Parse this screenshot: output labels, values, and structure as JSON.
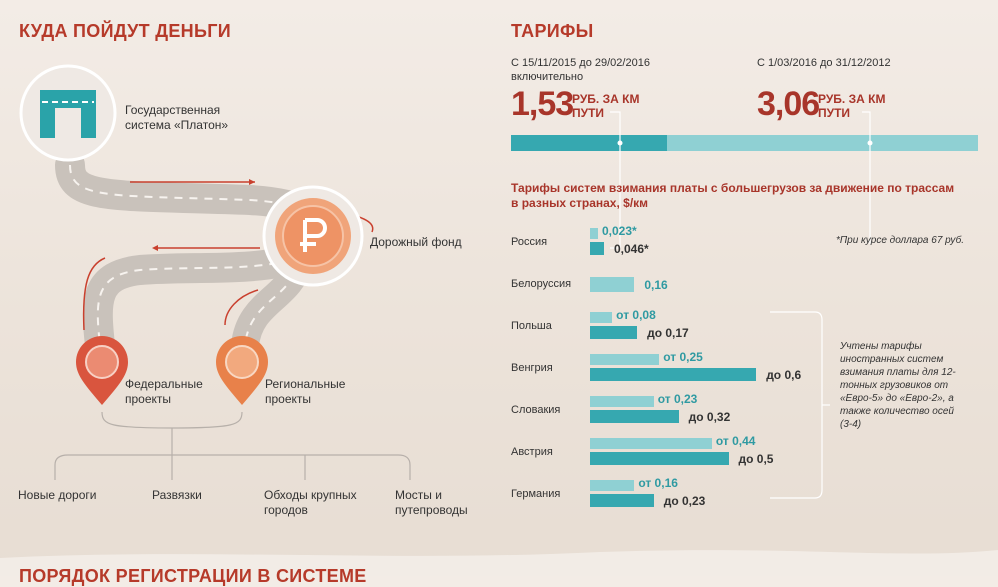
{
  "left": {
    "title": "КУДА ПОЙДУТ ДЕНЬГИ",
    "platon_label": "Государственная система «Платон»",
    "fund_label": "Дорожный фонд",
    "federal_label": "Федеральные проекты",
    "regional_label": "Региональные проекты",
    "destinations": [
      "Новые дороги",
      "Развязки",
      "Обходы крупных городов",
      "Мосты и путепроводы"
    ],
    "icons": [
      "platon-logo-icon",
      "ruble-coin-icon",
      "map-pin-icon"
    ]
  },
  "right": {
    "title": "ТАРИФЫ",
    "period1": {
      "dates": "С 15/11/2015 до 29/02/2016",
      "note": "включительно",
      "value": "1,53",
      "unit": "РУБ. ЗА КМ ПУТИ"
    },
    "period2": {
      "dates": "С 1/03/2016 до 31/12/2012",
      "value": "3,06",
      "unit": "РУБ. ЗА КМ ПУТИ"
    },
    "chart_title": "Тарифы систем взимания платы с большегрузов за движение по трассам в разных странах, $/км",
    "footnote": "*При курсе доллара 67 руб.",
    "side_note": "Учтены тарифы иностранных систем взимания платы для 12-тонных грузовиков от «Евро-5» до «Евро-2», а также количество осей (3-4)",
    "colors": {
      "accent": "#b63a2a",
      "teal_light": "#8fd0d3",
      "teal_dark": "#36a8b0"
    }
  },
  "chart_data": {
    "type": "bar",
    "title": "Тарифы систем взимания платы с большегрузов за движение по трассам в разных странах, $/км",
    "categories": [
      "Россия",
      "Белоруссия",
      "Польша",
      "Венгрия",
      "Словакия",
      "Австрия",
      "Германия"
    ],
    "series": [
      {
        "values": [
          0.023,
          0.16,
          0.08,
          0.25,
          0.23,
          0.44,
          0.16
        ]
      },
      {
        "values": [
          0.046,
          null,
          0.17,
          0.6,
          0.32,
          0.5,
          0.23
        ]
      }
    ],
    "labels_low": [
      "0,023*",
      "0,16",
      "от 0,08",
      "от 0,25",
      "от 0,23",
      "от 0,44",
      "от 0,16"
    ],
    "labels_high": [
      "0,046*",
      "",
      "до 0,17",
      "до 0,6",
      "до 0,32",
      "до 0,5",
      "до 0,23"
    ],
    "tariff_bar": {
      "period1_value": 1.53,
      "period2_value": 3.06
    }
  },
  "bottom": {
    "title": "ПОРЯДОК РЕГИСТРАЦИИ В СИСТЕМЕ"
  }
}
